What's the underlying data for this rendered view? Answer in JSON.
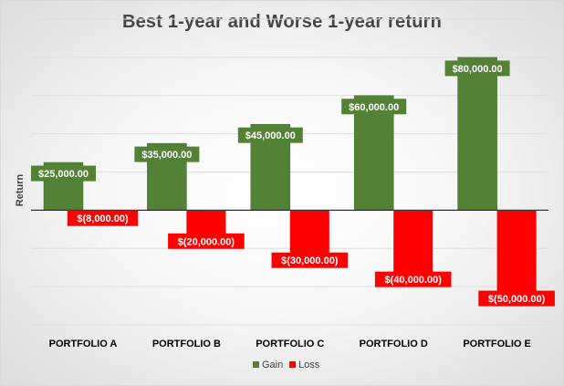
{
  "chart_data": {
    "type": "bar",
    "title": "Best 1-year and Worse 1-year return",
    "ylabel": "Return",
    "xlabel": "",
    "categories": [
      "PORTFOLIO A",
      "PORTFOLIO B",
      "PORTFOLIO C",
      "PORTFOLIO D",
      "PORTFOLIO E"
    ],
    "series": [
      {
        "name": "Gain",
        "color": "#538135",
        "values": [
          25000,
          35000,
          45000,
          60000,
          80000
        ],
        "labels": [
          "$25,000.00",
          "$35,000.00",
          "$45,000.00",
          "$60,000.00",
          "$80,000.00"
        ]
      },
      {
        "name": "Loss",
        "color": "#ff0000",
        "values": [
          -8000,
          -20000,
          -30000,
          -40000,
          -50000
        ],
        "labels": [
          "$(8,000.00)",
          "$(20,000.00)",
          "$(30,000.00)",
          "$(40,000.00)",
          "$(50,000.00)"
        ]
      }
    ],
    "ylim": [
      -60000,
      100000
    ],
    "ytick_step": 20000,
    "grid": true,
    "legend_position": "bottom"
  }
}
